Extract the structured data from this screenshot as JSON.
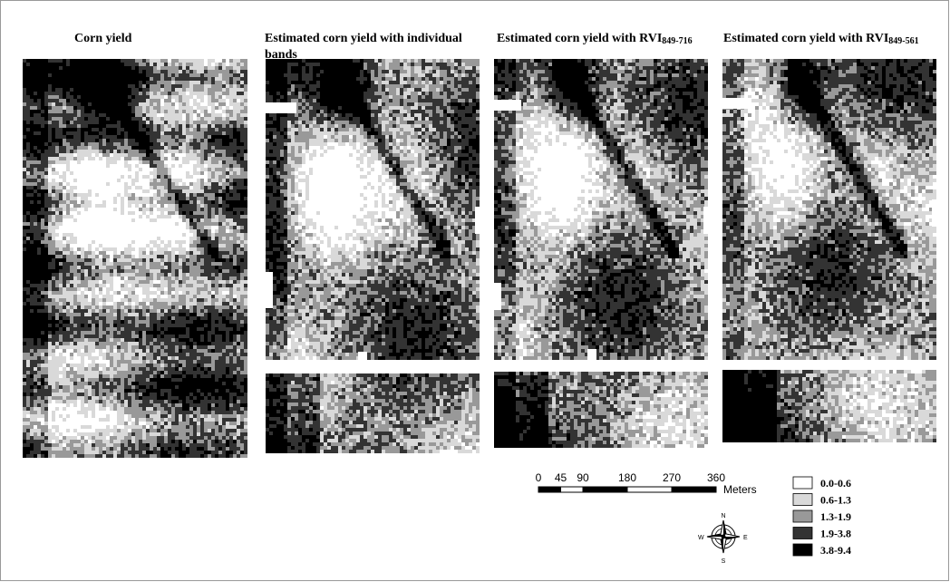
{
  "panels": [
    {
      "title": "Corn yield"
    },
    {
      "title": "Estimated corn yield with individual bands"
    },
    {
      "title": "Estimated corn yield with RVI",
      "subscript": "849-716"
    },
    {
      "title": "Estimated corn yield with RVI",
      "subscript": "849-561"
    }
  ],
  "scale_bar": {
    "ticks": [
      0,
      45,
      90,
      180,
      270,
      360
    ],
    "unit": "Meters"
  },
  "legend": [
    {
      "label": "0.0-0.6",
      "color": "#ffffff"
    },
    {
      "label": "0.6-1.3",
      "color": "#d9d9d9"
    },
    {
      "label": "1.3-1.9",
      "color": "#999999"
    },
    {
      "label": "1.9-3.8",
      "color": "#333333"
    },
    {
      "label": "3.8-9.4",
      "color": "#000000"
    }
  ],
  "compass": {
    "n": "N",
    "s": "S",
    "e": "E",
    "w": "W"
  }
}
